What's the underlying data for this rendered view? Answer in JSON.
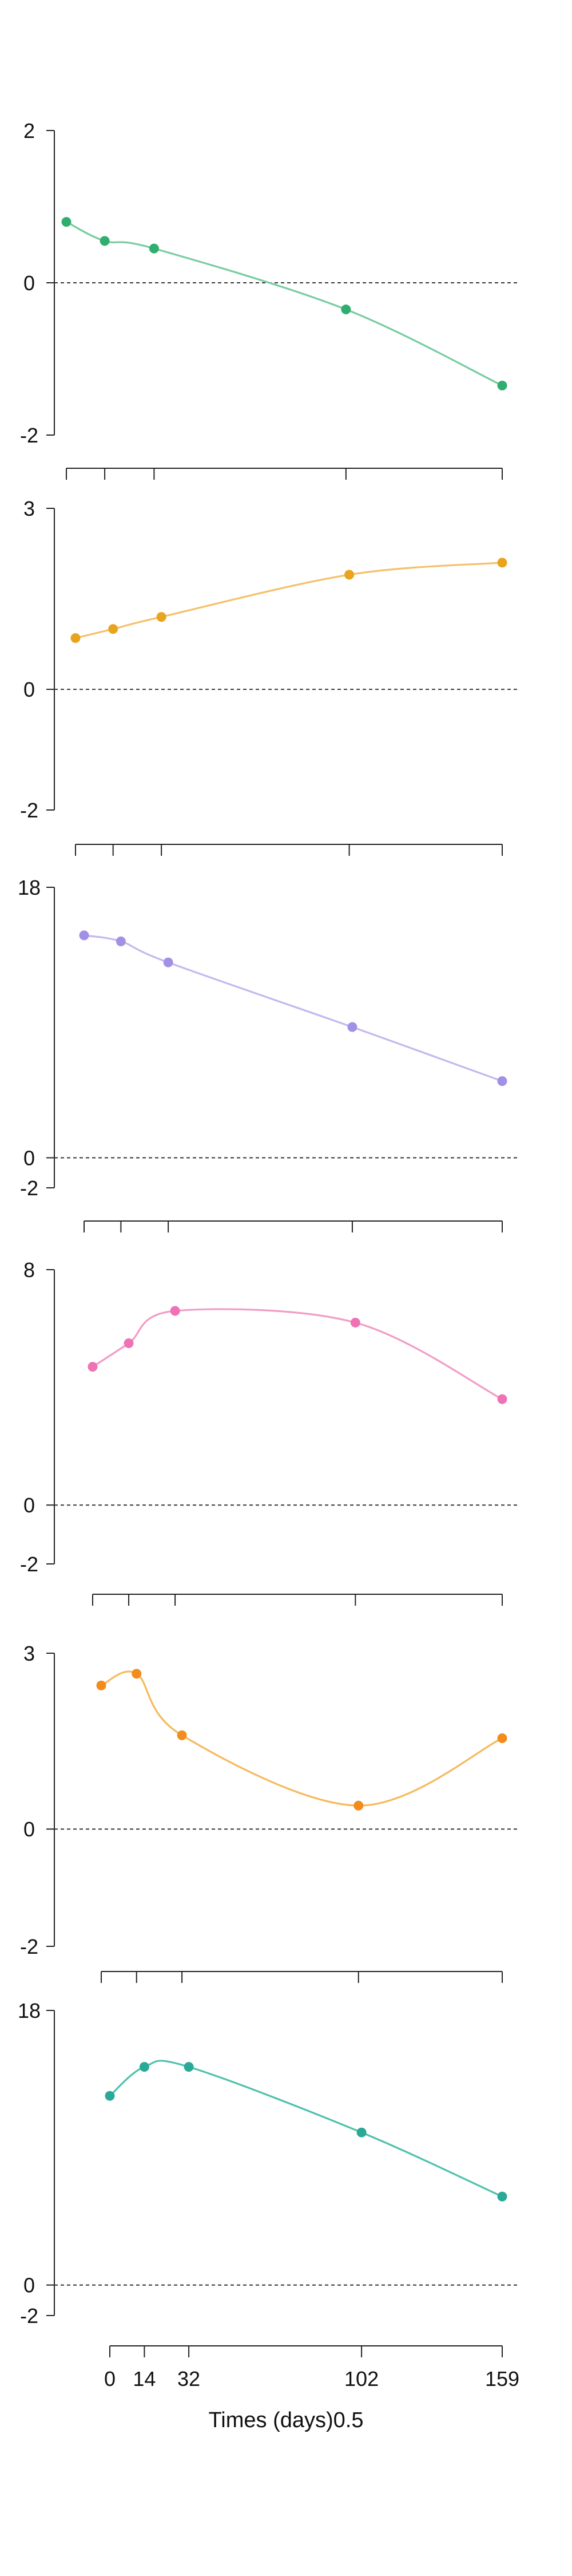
{
  "chart_data": {
    "type": "line",
    "layout": "stacked small multiples sharing the x axis",
    "xlabel": "Times (days)0.5",
    "x_tick_labels": [
      "0",
      "14",
      "32",
      "102",
      "159"
    ],
    "x_tick_values": [
      0,
      14,
      32,
      102,
      159
    ],
    "reference_line": {
      "y": 0,
      "style": "dashed"
    },
    "grid": false,
    "legend": "none",
    "panels": [
      {
        "color": "#79cc9f",
        "point_color": "#2fae6f",
        "ylim": [
          -2,
          2
        ],
        "yticks": [
          -2,
          0,
          2
        ],
        "x": [
          0,
          14,
          32,
          102,
          159
        ],
        "values": [
          0.8,
          0.55,
          0.45,
          -0.35,
          -1.35
        ]
      },
      {
        "color": "#f5c06a",
        "point_color": "#e8a41c",
        "ylim": [
          -2,
          3
        ],
        "yticks": [
          -2,
          0,
          3
        ],
        "x": [
          0,
          14,
          32,
          102,
          159
        ],
        "values": [
          0.85,
          1.0,
          1.2,
          1.9,
          2.1
        ]
      },
      {
        "color": "#c4b8ef",
        "point_color": "#a190e6",
        "ylim": [
          -2,
          18
        ],
        "yticks": [
          -2,
          0,
          18
        ],
        "x": [
          0,
          14,
          32,
          102,
          159
        ],
        "values": [
          14.8,
          14.4,
          13.0,
          8.7,
          5.1
        ]
      },
      {
        "color": "#f29cc7",
        "point_color": "#ee73b4",
        "ylim": [
          -2,
          8
        ],
        "yticks": [
          -2,
          0,
          8
        ],
        "x": [
          0,
          14,
          32,
          102,
          159
        ],
        "values": [
          4.7,
          5.5,
          6.6,
          6.2,
          3.6
        ]
      },
      {
        "color": "#f7b95c",
        "point_color": "#f28c1c",
        "ylim": [
          -2,
          3
        ],
        "yticks": [
          -2,
          0,
          3
        ],
        "x": [
          0,
          14,
          32,
          102,
          159
        ],
        "values": [
          2.45,
          2.65,
          1.6,
          0.4,
          1.55
        ]
      },
      {
        "color": "#4fc1ad",
        "point_color": "#2aa996",
        "ylim": [
          -2,
          18
        ],
        "yticks": [
          -2,
          0,
          18
        ],
        "x": [
          0,
          14,
          32,
          102,
          159
        ],
        "values": [
          12.4,
          14.3,
          14.3,
          10.0,
          5.8
        ]
      }
    ]
  }
}
